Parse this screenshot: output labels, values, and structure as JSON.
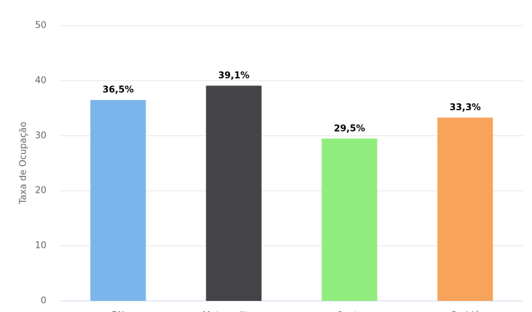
{
  "chart_data": {
    "type": "bar",
    "y_label": "Taxa de Ocupação",
    "categories": [
      "RN",
      "Metropolitana",
      "Oeste",
      "Seridó"
    ],
    "values": [
      36.5,
      39.1,
      29.5,
      33.3
    ],
    "value_labels": [
      "36,5%",
      "39,1%",
      "29,5%",
      "33,3%"
    ],
    "colors": [
      "#7cb5ec",
      "#434348",
      "#90ed7d",
      "#f7a35c"
    ],
    "ylim": [
      0,
      50
    ],
    "yticks": [
      0,
      10,
      20,
      30,
      40,
      50
    ],
    "grid": true
  }
}
